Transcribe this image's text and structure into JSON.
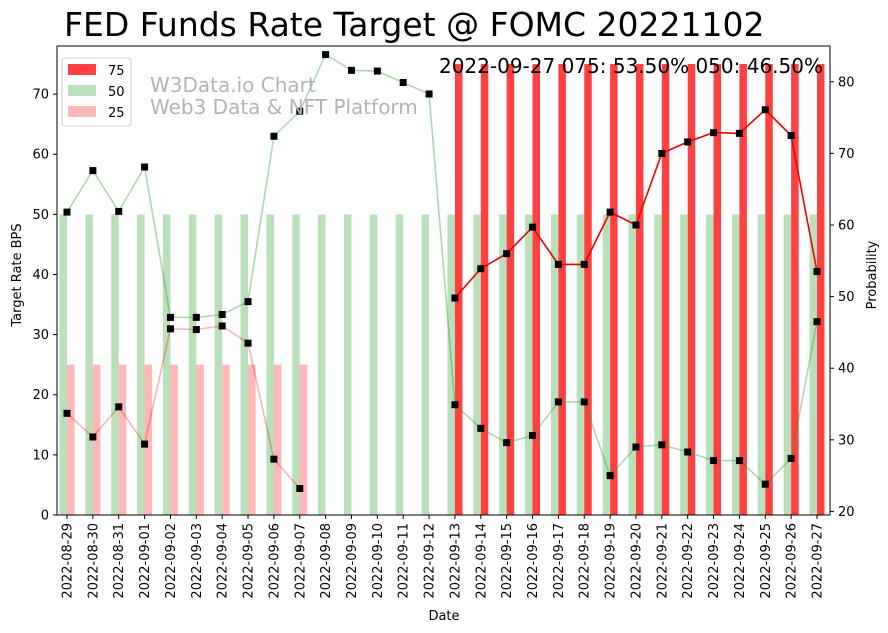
{
  "chart_data": {
    "type": "bar+line",
    "title": "FED Funds Rate Target @ FOMC 20221102",
    "subtitle": "2022-09-27 075: 53.50% 050: 46.50%",
    "watermark": [
      "W3Data.io Chart",
      "Web3 Data & NFT Platform"
    ],
    "xlabel": "Date",
    "ylabel_left": "Target Rate BPS",
    "ylabel_right": "Probability",
    "ylim_left": [
      0,
      78
    ],
    "ylim_right": [
      19.5,
      85
    ],
    "yticks_left": [
      0,
      10,
      20,
      30,
      40,
      50,
      60,
      70
    ],
    "yticks_right": [
      20,
      30,
      40,
      50,
      60,
      70,
      80
    ],
    "categories": [
      "2022-08-29",
      "2022-08-30",
      "2022-08-31",
      "2022-09-01",
      "2022-09-02",
      "2022-09-03",
      "2022-09-04",
      "2022-09-05",
      "2022-09-06",
      "2022-09-07",
      "2022-09-08",
      "2022-09-09",
      "2022-09-10",
      "2022-09-11",
      "2022-09-12",
      "2022-09-13",
      "2022-09-14",
      "2022-09-15",
      "2022-09-16",
      "2022-09-17",
      "2022-09-18",
      "2022-09-19",
      "2022-09-20",
      "2022-09-21",
      "2022-09-22",
      "2022-09-23",
      "2022-09-24",
      "2022-09-25",
      "2022-09-26",
      "2022-09-27"
    ],
    "legend_position": "top-left",
    "bar_series": [
      {
        "name": "75",
        "color": "#ff0000",
        "alpha": 0.75,
        "values": [
          0,
          0,
          0,
          0,
          0,
          0,
          0,
          0,
          0,
          0,
          0,
          0,
          0,
          0,
          0,
          75,
          75,
          75,
          75,
          75,
          75,
          75,
          75,
          75,
          75,
          75,
          75,
          75,
          75,
          75
        ]
      },
      {
        "name": "50",
        "color": "#2ca02c",
        "alpha": 0.33,
        "values": [
          50,
          50,
          50,
          50,
          50,
          50,
          50,
          50,
          50,
          50,
          50,
          50,
          50,
          50,
          50,
          50,
          50,
          50,
          50,
          50,
          50,
          50,
          50,
          50,
          50,
          50,
          50,
          50,
          50,
          50
        ]
      },
      {
        "name": "25",
        "color": "#ff0000",
        "alpha": 0.28,
        "values": [
          25,
          25,
          25,
          25,
          25,
          25,
          25,
          25,
          25,
          25,
          0,
          0,
          0,
          0,
          0,
          0,
          0,
          0,
          0,
          0,
          0,
          0,
          0,
          0,
          0,
          0,
          0,
          0,
          0,
          0
        ]
      }
    ],
    "line_series": [
      {
        "name": "75",
        "color": "#ee0000",
        "alpha": 1.0,
        "values": [
          null,
          null,
          null,
          null,
          null,
          null,
          null,
          null,
          null,
          null,
          null,
          null,
          null,
          null,
          null,
          49.8,
          53.9,
          56.0,
          59.7,
          54.5,
          54.5,
          61.8,
          60.0,
          70.0,
          71.6,
          72.9,
          72.8,
          76.1,
          72.5,
          53.5
        ]
      },
      {
        "name": "50",
        "color": "#2ca02c",
        "alpha": 0.4,
        "values": [
          61.8,
          67.6,
          61.9,
          68.1,
          47.1,
          47.1,
          47.5,
          49.3,
          72.4,
          75.9,
          83.8,
          81.6,
          81.5,
          79.9,
          78.3,
          34.9,
          31.6,
          29.6,
          30.6,
          35.3,
          35.3,
          25.0,
          29.0,
          29.3,
          28.3,
          27.1,
          27.1,
          23.8,
          27.4,
          46.5
        ]
      },
      {
        "name": "25",
        "color": "#ff0000",
        "alpha": 0.3,
        "values": [
          33.7,
          30.4,
          34.6,
          29.4,
          45.5,
          45.4,
          45.9,
          43.5,
          27.3,
          23.2,
          null,
          null,
          null,
          null,
          null,
          null,
          null,
          null,
          null,
          null,
          null,
          null,
          null,
          null,
          null,
          null,
          null,
          null,
          null,
          null
        ]
      }
    ]
  }
}
